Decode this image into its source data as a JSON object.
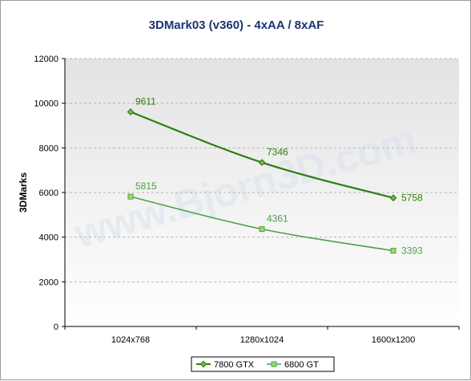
{
  "chart_data": {
    "type": "line",
    "title": "3DMark03 (v360) - 4xAA / 8xAF",
    "ylabel": "3DMarks",
    "xlabel": "",
    "categories": [
      "1024x768",
      "1280x1024",
      "1600x1200"
    ],
    "yticks": [
      0,
      2000,
      4000,
      6000,
      8000,
      10000,
      12000
    ],
    "ylim": [
      0,
      12000
    ],
    "grid": true,
    "legend_position": "bottom",
    "watermark": "www.Bjorn3D.com",
    "series": [
      {
        "name": "7800 GTX",
        "values": [
          9611,
          7346,
          5758
        ],
        "labels": [
          "9611",
          "7346",
          "5758"
        ],
        "color": "#2e7d0f",
        "marker": "diamond"
      },
      {
        "name": "6800 GT",
        "values": [
          5815,
          4361,
          3393
        ],
        "labels": [
          "5815",
          "4361",
          "3393"
        ],
        "color": "#4aa24a",
        "marker": "square"
      }
    ],
    "colors": {
      "title": "#1f3470",
      "plot_bg_top": "#e3e3e3",
      "plot_bg_bottom": "#ffffff",
      "grid": "#b4b4b4"
    }
  }
}
